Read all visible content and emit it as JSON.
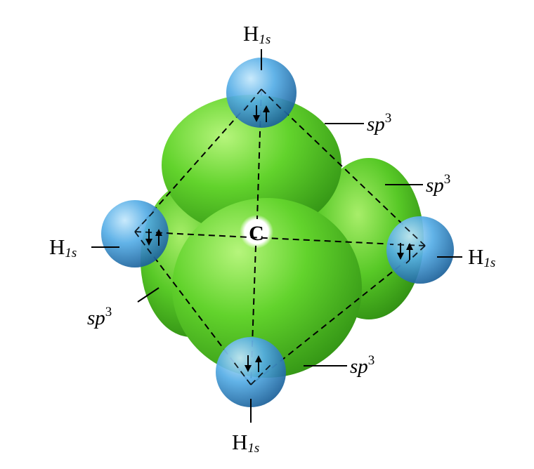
{
  "labels": {
    "carbon": "C",
    "h_main": "H",
    "h_sub": "1s",
    "sp_main": "sp",
    "sp_sup": "3"
  },
  "colors": {
    "lobe_light": "#a8ee6a",
    "lobe_mid": "#5fd02a",
    "lobe_dark": "#2e8e12",
    "sphere_light": "#b9e2fb",
    "sphere_mid": "#4aa8e4",
    "sphere_dark": "#1a5f98",
    "line": "#000000"
  },
  "icons": {
    "electron_pair": "up-down-arrow-pair"
  }
}
